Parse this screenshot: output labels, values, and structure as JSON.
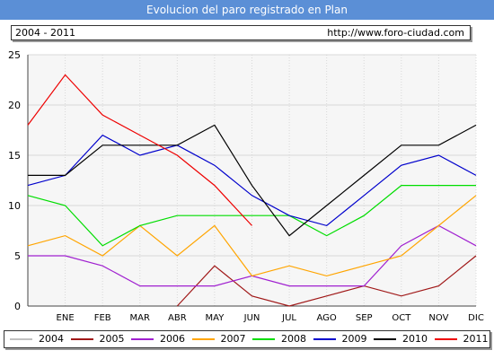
{
  "header": {
    "title": "Evolucion del paro registrado en Plan"
  },
  "info": {
    "range": "2004 - 2011",
    "url": "http://www.foro-ciudad.com"
  },
  "chart_data": {
    "type": "line",
    "title": "Evolucion del paro registrado en Plan",
    "categories": [
      "",
      "ENE",
      "FEB",
      "MAR",
      "ABR",
      "MAY",
      "JUN",
      "JUL",
      "AGO",
      "SEP",
      "OCT",
      "NOV",
      "DIC"
    ],
    "ylim": [
      0,
      25
    ],
    "yticks": [
      0,
      5,
      10,
      15,
      20,
      25
    ],
    "grid": true,
    "legend_position": "bottom",
    "series": [
      {
        "name": "2004",
        "color": "#c0c0c0",
        "values": [
          null,
          null,
          null,
          null,
          null,
          null,
          null,
          null,
          null,
          null,
          null,
          null,
          null
        ]
      },
      {
        "name": "2005",
        "color": "#a01818",
        "values": [
          null,
          null,
          null,
          null,
          0,
          4,
          1,
          0,
          1,
          2,
          1,
          2,
          5
        ]
      },
      {
        "name": "2006",
        "color": "#a020d0",
        "values": [
          5,
          5,
          4,
          2,
          2,
          2,
          3,
          2,
          2,
          2,
          6,
          8,
          6
        ]
      },
      {
        "name": "2007",
        "color": "#ffa500",
        "values": [
          6,
          7,
          5,
          8,
          5,
          8,
          3,
          4,
          3,
          4,
          5,
          8,
          11
        ]
      },
      {
        "name": "2008",
        "color": "#00dd00",
        "values": [
          11,
          10,
          6,
          8,
          9,
          9,
          9,
          9,
          7,
          9,
          12,
          12,
          12
        ]
      },
      {
        "name": "2009",
        "color": "#0000cc",
        "values": [
          12,
          13,
          17,
          15,
          16,
          14,
          11,
          9,
          8,
          11,
          14,
          15,
          13
        ]
      },
      {
        "name": "2010",
        "color": "#000000",
        "values": [
          13,
          13,
          16,
          16,
          16,
          18,
          12,
          7,
          10,
          13,
          16,
          16,
          18
        ]
      },
      {
        "name": "2011",
        "color": "#ee0000",
        "values": [
          18,
          23,
          19,
          17,
          15,
          12,
          8,
          null,
          null,
          null,
          null,
          null,
          null
        ]
      }
    ]
  }
}
